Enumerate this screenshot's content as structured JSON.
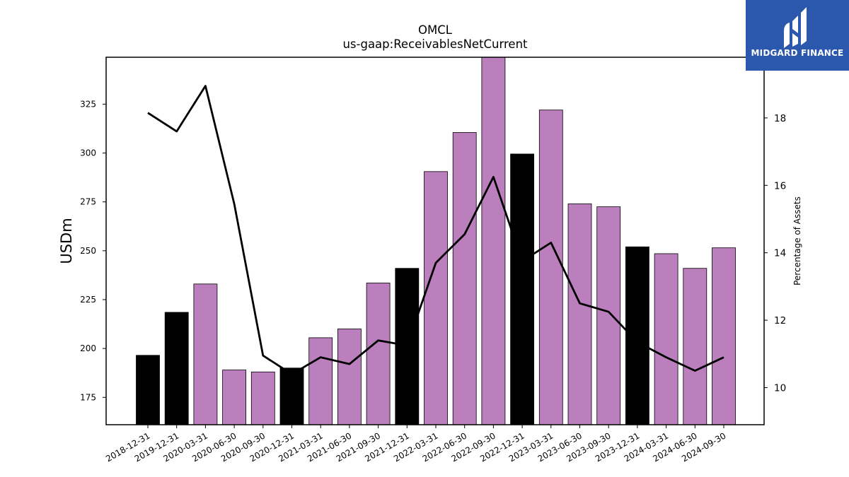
{
  "chart_data": {
    "type": "bar",
    "title": "OMCL",
    "subtitle": "us-gaap:ReceivablesNetCurrent",
    "ylabel": "USDm",
    "ylabel_right": "Percentage of Assets",
    "categories": [
      "2018-12-31",
      "2019-12-31",
      "2020-03-31",
      "2020-06-30",
      "2020-09-30",
      "2020-12-31",
      "2021-03-31",
      "2021-06-30",
      "2021-09-30",
      "2021-12-31",
      "2022-03-31",
      "2022-06-30",
      "2022-09-30",
      "2022-12-31",
      "2023-03-31",
      "2023-06-30",
      "2023-09-30",
      "2023-12-31",
      "2024-03-31",
      "2024-06-30",
      "2024-09-30"
    ],
    "series": [
      {
        "kind": "bar",
        "values": [
          196.5,
          218.5,
          233.0,
          189.0,
          188.0,
          190.0,
          205.5,
          210.0,
          233.5,
          241.0,
          290.5,
          310.5,
          349.0,
          299.5,
          322.0,
          274.0,
          272.5,
          252.0,
          248.5,
          241.0,
          251.5
        ],
        "colors": [
          "#000000",
          "#000000",
          "#bc7fbd",
          "#bc7fbd",
          "#bc7fbd",
          "#000000",
          "#bc7fbd",
          "#bc7fbd",
          "#bc7fbd",
          "#000000",
          "#bc7fbd",
          "#bc7fbd",
          "#bc7fbd",
          "#000000",
          "#bc7fbd",
          "#bc7fbd",
          "#bc7fbd",
          "#000000",
          "#bc7fbd",
          "#bc7fbd",
          "#bc7fbd"
        ]
      },
      {
        "kind": "line",
        "axis": "right",
        "color": "#000000",
        "values": [
          18.15,
          17.6,
          18.95,
          15.45,
          10.95,
          10.4,
          10.9,
          10.7,
          11.4,
          11.25,
          13.7,
          14.55,
          16.25,
          13.75,
          14.3,
          12.5,
          12.25,
          11.35,
          10.9,
          10.5,
          10.9
        ]
      }
    ],
    "ylim": [
      161,
      349
    ],
    "ylim_right": [
      8.9,
      19.8
    ],
    "yticks": [
      175,
      200,
      225,
      250,
      275,
      300,
      325
    ],
    "yticks_right": [
      10,
      12,
      14,
      16,
      18
    ],
    "grid": false,
    "legend": "none"
  },
  "logo": {
    "text": "MIDGARD FINANCE",
    "background": "#2b57ad"
  }
}
